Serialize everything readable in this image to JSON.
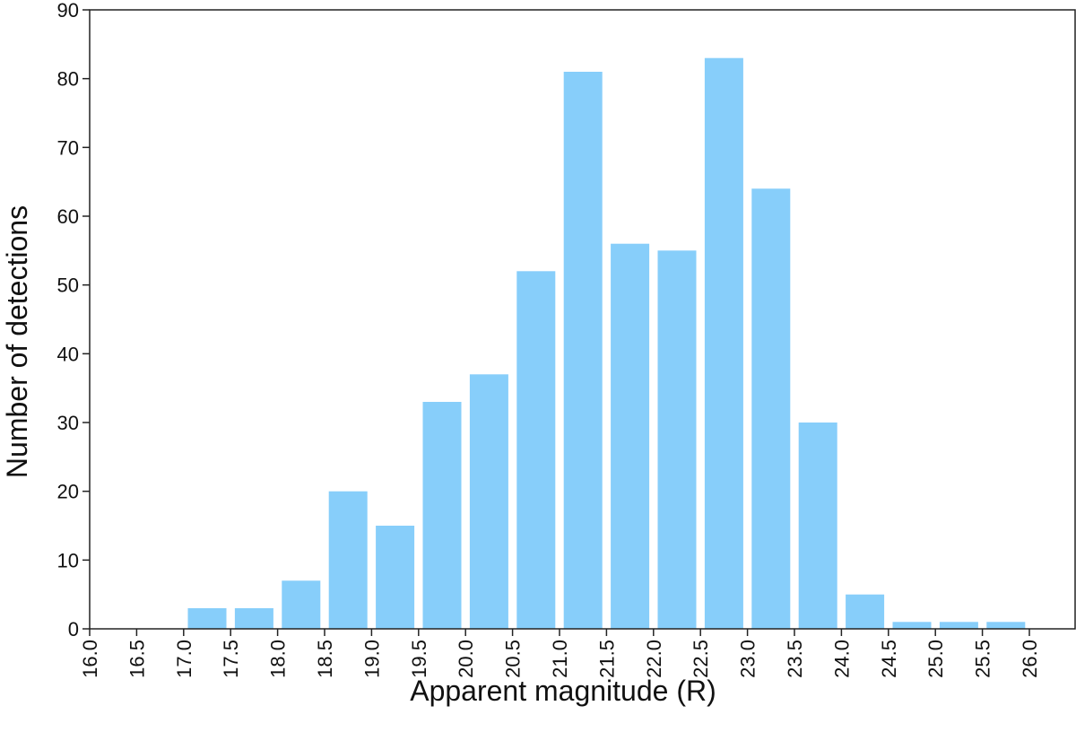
{
  "chart_data": {
    "type": "bar",
    "title": "",
    "xlabel": "Apparent magnitude (R)",
    "ylabel": "Number of detections",
    "bar_color": "#87cefa",
    "x_ticks": [
      "16.0",
      "16.5",
      "17.0",
      "17.5",
      "18.0",
      "18.5",
      "19.0",
      "19.5",
      "20.0",
      "20.5",
      "21.0",
      "21.5",
      "22.0",
      "22.5",
      "23.0",
      "23.5",
      "24.0",
      "24.5",
      "25.0",
      "25.5",
      "26.0"
    ],
    "y_ticks": [
      0,
      10,
      20,
      30,
      40,
      50,
      60,
      70,
      80,
      90
    ],
    "ylim": [
      0,
      90
    ],
    "xlim": [
      16.0,
      26.0
    ],
    "bin_width": 0.5,
    "bins": [
      {
        "x": 16.0,
        "value": 0
      },
      {
        "x": 16.5,
        "value": 0
      },
      {
        "x": 17.0,
        "value": 3
      },
      {
        "x": 17.5,
        "value": 3
      },
      {
        "x": 18.0,
        "value": 7
      },
      {
        "x": 18.5,
        "value": 20
      },
      {
        "x": 19.0,
        "value": 15
      },
      {
        "x": 19.5,
        "value": 33
      },
      {
        "x": 20.0,
        "value": 37
      },
      {
        "x": 20.5,
        "value": 52
      },
      {
        "x": 21.0,
        "value": 81
      },
      {
        "x": 21.5,
        "value": 56
      },
      {
        "x": 22.0,
        "value": 55
      },
      {
        "x": 22.5,
        "value": 83
      },
      {
        "x": 23.0,
        "value": 64
      },
      {
        "x": 23.5,
        "value": 30
      },
      {
        "x": 24.0,
        "value": 5
      },
      {
        "x": 24.5,
        "value": 1
      },
      {
        "x": 25.0,
        "value": 1
      },
      {
        "x": 25.5,
        "value": 1
      }
    ],
    "grid": false,
    "legend": "none"
  }
}
